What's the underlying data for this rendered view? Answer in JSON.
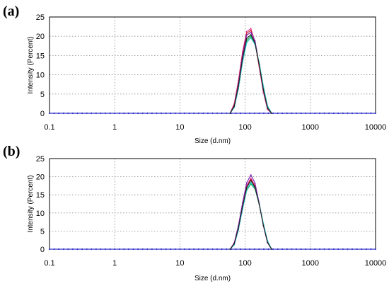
{
  "chart_data": [
    {
      "type": "line",
      "panel_label": "(a)",
      "xlabel": "Size (d.nm)",
      "ylabel": "Intensity (Percent)",
      "xscale": "log",
      "xlim": [
        0.1,
        10000
      ],
      "ylim": [
        0,
        25
      ],
      "xticks": [
        0.1,
        1,
        10,
        100,
        1000,
        10000
      ],
      "xtick_labels": [
        "0.1",
        "1",
        "10",
        "100",
        "1000",
        "10000"
      ],
      "yticks": [
        0,
        5,
        10,
        15,
        20,
        25
      ],
      "ytick_labels": [
        "0",
        "5",
        "10",
        "15",
        "20",
        "25"
      ],
      "grid": true,
      "legend": "none",
      "x": [
        58.8,
        68.1,
        78.8,
        91.3,
        105.7,
        122.4,
        141.8,
        164.2,
        190.1,
        220.2,
        255.0
      ],
      "series": [
        {
          "color": "#e0309a",
          "values": [
            0,
            2.5,
            8.5,
            16.0,
            21.2,
            22.0,
            18.5,
            12.0,
            5.5,
            1.0,
            0
          ]
        },
        {
          "color": "#d02020",
          "values": [
            0,
            2.3,
            8.0,
            15.5,
            20.8,
            21.5,
            18.2,
            12.2,
            5.8,
            1.2,
            0
          ]
        },
        {
          "color": "#7a1fb0",
          "values": [
            0,
            2.0,
            7.5,
            15.0,
            20.3,
            21.0,
            18.8,
            12.8,
            6.0,
            1.3,
            0
          ]
        },
        {
          "color": "#00b050",
          "values": [
            0,
            1.6,
            6.5,
            13.8,
            18.8,
            20.0,
            18.0,
            13.0,
            6.8,
            1.8,
            0
          ]
        },
        {
          "color": "#30c8d0",
          "values": [
            0,
            1.5,
            6.2,
            13.2,
            18.3,
            19.6,
            17.8,
            13.2,
            7.2,
            2.0,
            0
          ]
        },
        {
          "color": "#202020",
          "values": [
            0,
            1.8,
            7.0,
            14.2,
            19.4,
            20.4,
            18.2,
            12.6,
            6.2,
            1.4,
            0
          ]
        }
      ]
    },
    {
      "type": "line",
      "panel_label": "(b)",
      "xlabel": "Size (d.nm)",
      "ylabel": "Intensity (Percent)",
      "xscale": "log",
      "xlim": [
        0.1,
        10000
      ],
      "ylim": [
        0,
        25
      ],
      "xticks": [
        0.1,
        1,
        10,
        100,
        1000,
        10000
      ],
      "xtick_labels": [
        "0.1",
        "1",
        "10",
        "100",
        "1000",
        "10000"
      ],
      "yticks": [
        0,
        5,
        10,
        15,
        20,
        25
      ],
      "ytick_labels": [
        "0",
        "5",
        "10",
        "15",
        "20",
        "25"
      ],
      "grid": true,
      "legend": "none",
      "x": [
        58.8,
        68.1,
        78.8,
        91.3,
        105.7,
        122.4,
        141.8,
        164.2,
        190.1,
        220.2,
        255.0
      ],
      "series": [
        {
          "color": "#e0309a",
          "values": [
            0,
            1.8,
            6.5,
            12.5,
            17.5,
            19.6,
            17.5,
            12.5,
            6.5,
            1.8,
            0
          ]
        },
        {
          "color": "#d02020",
          "values": [
            0,
            1.6,
            6.0,
            12.0,
            17.2,
            19.2,
            17.4,
            12.6,
            6.8,
            2.0,
            0
          ]
        },
        {
          "color": "#7a1fb0",
          "values": [
            0,
            1.7,
            6.4,
            12.8,
            18.3,
            20.5,
            18.2,
            12.8,
            6.6,
            1.8,
            0
          ]
        },
        {
          "color": "#00b050",
          "values": [
            0,
            1.3,
            5.4,
            11.2,
            16.2,
            18.0,
            16.6,
            12.4,
            7.0,
            2.2,
            0
          ]
        },
        {
          "color": "#30c8d0",
          "values": [
            0,
            1.2,
            5.2,
            11.0,
            16.4,
            18.4,
            16.8,
            12.6,
            7.2,
            2.4,
            0
          ]
        },
        {
          "color": "#202020",
          "values": [
            0,
            1.5,
            5.8,
            11.8,
            17.0,
            19.0,
            17.0,
            12.4,
            6.6,
            1.9,
            0
          ]
        }
      ]
    }
  ],
  "baseline_series": {
    "color": "#3030c8"
  }
}
